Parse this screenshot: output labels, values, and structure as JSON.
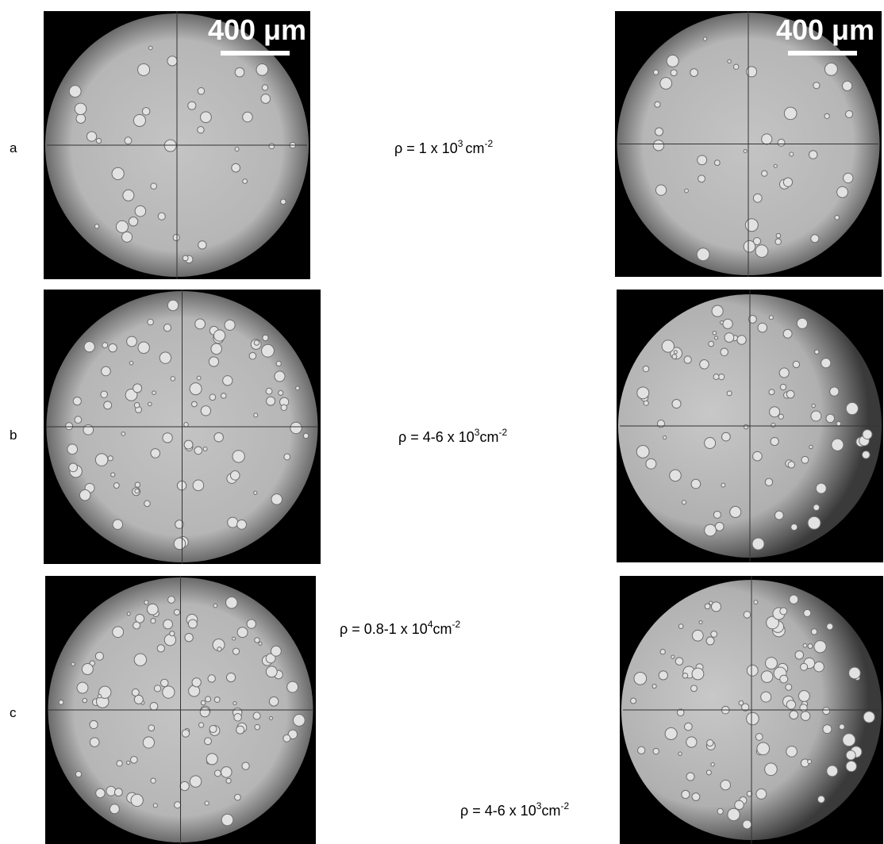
{
  "rows": [
    {
      "label": "a",
      "densities": [
        {
          "base": "ρ = 1 x 10",
          "exponent": "3",
          "unit": "cm",
          "unit_exponent": "-2"
        }
      ],
      "scale_bar": "400 μm"
    },
    {
      "label": "b",
      "densities": [
        {
          "base": "ρ = 4-6 x 10",
          "exponent": "3",
          "unit": "cm",
          "unit_exponent": "-2"
        }
      ]
    },
    {
      "label": "c",
      "densities": [
        {
          "base": "ρ = 0.8-1 x 10",
          "exponent": "4",
          "unit": "cm",
          "unit_exponent": "-2"
        },
        {
          "base": "ρ = 4-6 x 10",
          "exponent": "3",
          "unit": "cm",
          "unit_exponent": "-2"
        }
      ]
    }
  ]
}
